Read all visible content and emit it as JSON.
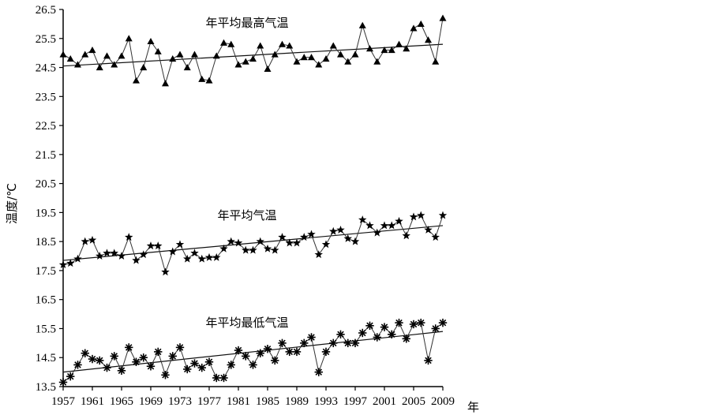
{
  "chart_data": {
    "type": "line",
    "ylabel": "温度/℃",
    "x_unit": "年",
    "ylim": [
      13.5,
      26.5
    ],
    "yticks": [
      13.5,
      14.5,
      15.5,
      16.5,
      17.5,
      18.5,
      19.5,
      20.5,
      21.5,
      22.5,
      23.5,
      24.5,
      25.5,
      26.5
    ],
    "xlim": [
      1957,
      2009
    ],
    "xticks": [
      1957,
      1961,
      1965,
      1969,
      1973,
      1977,
      1981,
      1985,
      1989,
      1993,
      1997,
      2001,
      2005,
      2009
    ],
    "x": [
      1957,
      1958,
      1959,
      1960,
      1961,
      1962,
      1963,
      1964,
      1965,
      1966,
      1967,
      1968,
      1969,
      1970,
      1971,
      1972,
      1973,
      1974,
      1975,
      1976,
      1977,
      1978,
      1979,
      1980,
      1981,
      1982,
      1983,
      1984,
      1985,
      1986,
      1987,
      1988,
      1989,
      1990,
      1991,
      1992,
      1993,
      1994,
      1995,
      1996,
      1997,
      1998,
      1999,
      2000,
      2001,
      2002,
      2003,
      2004,
      2005,
      2006,
      2007,
      2008,
      2009
    ],
    "series": [
      {
        "name": "年平均最高气温",
        "marker": "triangle",
        "values": [
          24.95,
          24.8,
          24.6,
          24.95,
          25.1,
          24.5,
          24.9,
          24.6,
          24.9,
          25.5,
          24.05,
          24.5,
          25.4,
          25.05,
          23.95,
          24.8,
          24.95,
          24.5,
          24.95,
          24.1,
          24.05,
          24.9,
          25.35,
          25.3,
          24.6,
          24.7,
          24.8,
          25.25,
          24.45,
          24.95,
          25.3,
          25.25,
          24.7,
          24.85,
          24.85,
          24.6,
          24.8,
          25.25,
          24.95,
          24.7,
          24.95,
          25.95,
          25.15,
          24.7,
          25.1,
          25.1,
          25.3,
          25.15,
          25.85,
          26.0,
          25.45,
          24.7,
          26.2
        ],
        "trend": [
          24.55,
          25.3
        ]
      },
      {
        "name": "年平均气温",
        "marker": "star",
        "values": [
          17.7,
          17.75,
          17.9,
          18.5,
          18.55,
          18.0,
          18.1,
          18.1,
          18.0,
          18.65,
          17.85,
          18.05,
          18.35,
          18.35,
          17.45,
          18.15,
          18.4,
          17.9,
          18.1,
          17.9,
          17.95,
          17.95,
          18.25,
          18.5,
          18.45,
          18.2,
          18.2,
          18.5,
          18.25,
          18.2,
          18.65,
          18.45,
          18.45,
          18.65,
          18.75,
          18.05,
          18.4,
          18.85,
          18.9,
          18.6,
          18.5,
          19.25,
          19.05,
          18.8,
          19.05,
          19.05,
          19.2,
          18.7,
          19.35,
          19.4,
          18.9,
          18.65,
          19.4
        ],
        "trend": [
          17.85,
          19.05
        ]
      },
      {
        "name": "年平均最低气温",
        "marker": "asterisk",
        "values": [
          13.65,
          13.85,
          14.25,
          14.65,
          14.45,
          14.4,
          14.15,
          14.55,
          14.05,
          14.85,
          14.35,
          14.5,
          14.2,
          14.7,
          13.9,
          14.55,
          14.85,
          14.1,
          14.3,
          14.15,
          14.35,
          13.8,
          13.8,
          14.25,
          14.75,
          14.55,
          14.25,
          14.65,
          14.8,
          14.4,
          15.0,
          14.7,
          14.7,
          15.0,
          15.2,
          14.0,
          14.7,
          15.0,
          15.3,
          15.0,
          15.0,
          15.35,
          15.6,
          15.2,
          15.55,
          15.3,
          15.7,
          15.15,
          15.65,
          15.7,
          14.4,
          15.5,
          15.7
        ],
        "trend": [
          14.0,
          15.4
        ]
      }
    ]
  }
}
